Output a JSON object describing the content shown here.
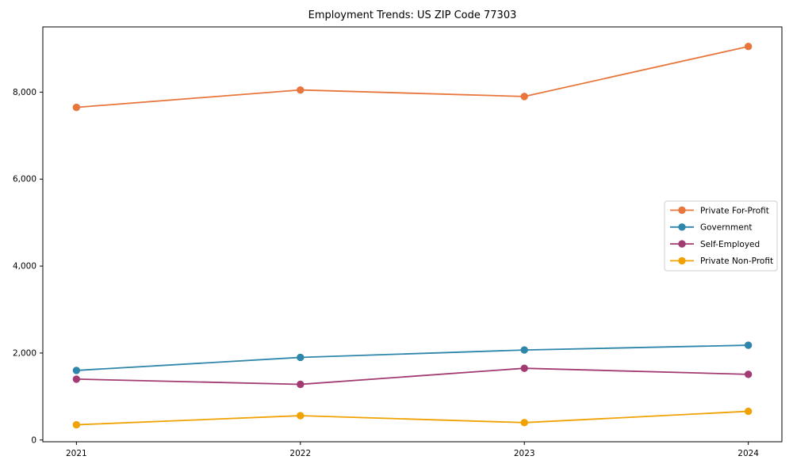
{
  "chart_data": {
    "type": "line",
    "title": "Employment Trends: US ZIP Code 77303",
    "xlabel": "",
    "ylabel": "",
    "grid": false,
    "background": "#ffffff",
    "x": [
      2021,
      2022,
      2023,
      2024
    ],
    "x_tick_labels": [
      "2021",
      "2022",
      "2023",
      "2024"
    ],
    "y_ticks": [
      0,
      2000,
      4000,
      6000,
      8000
    ],
    "y_tick_labels": [
      "0",
      "2,000",
      "4,000",
      "6,000",
      "8,000"
    ],
    "xlim": [
      2020.85,
      2024.15
    ],
    "ylim": [
      -40,
      9500
    ],
    "legend_position": "center-right",
    "marker": "circle",
    "series": [
      {
        "name": "Private For-Profit",
        "color": "#E8763C",
        "values": [
          7650,
          8050,
          7900,
          9050
        ]
      },
      {
        "name": "Government",
        "color": "#2E86AB",
        "values": [
          1600,
          1900,
          2070,
          2180
        ]
      },
      {
        "name": "Self-Employed",
        "color": "#A23B72",
        "values": [
          1400,
          1280,
          1650,
          1510
        ]
      },
      {
        "name": "Private Non-Profit",
        "color": "#F0A202",
        "values": [
          350,
          560,
          400,
          660
        ]
      }
    ]
  }
}
